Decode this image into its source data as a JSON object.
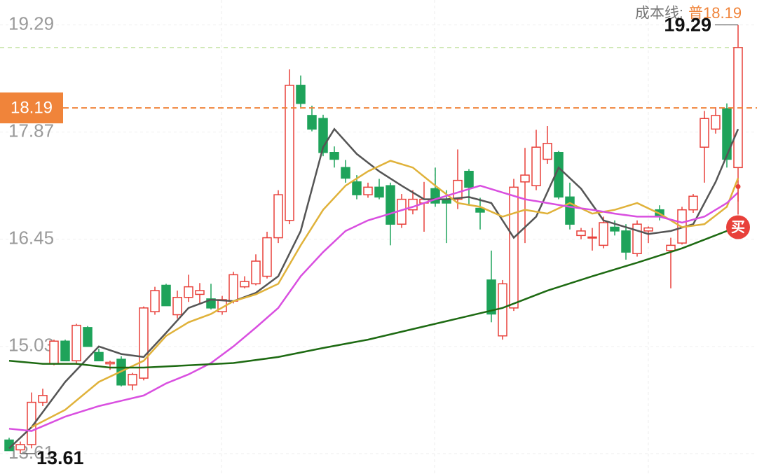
{
  "chart_data": {
    "type": "candlestick",
    "ylim": [
      13.34,
      19.62
    ],
    "yticks": [
      13.61,
      15.03,
      16.45,
      17.87,
      19.29
    ],
    "up_color": "#e8403a",
    "down_color": "#1ea35a",
    "candles": [
      [
        13.79,
        13.82,
        13.65,
        13.65
      ],
      [
        13.66,
        13.77,
        13.61,
        13.73
      ],
      [
        13.73,
        14.42,
        13.68,
        14.29
      ],
      [
        14.29,
        14.47,
        14.24,
        14.38
      ],
      [
        14.8,
        15.12,
        14.78,
        15.1
      ],
      [
        15.1,
        15.12,
        14.84,
        14.84
      ],
      [
        14.84,
        15.33,
        14.8,
        15.31
      ],
      [
        15.28,
        15.3,
        15.03,
        15.03
      ],
      [
        14.95,
        15.0,
        14.84,
        14.84
      ],
      [
        14.8,
        14.84,
        14.72,
        14.82
      ],
      [
        14.86,
        14.9,
        14.5,
        14.52
      ],
      [
        14.52,
        14.68,
        14.45,
        14.66
      ],
      [
        14.61,
        15.56,
        14.58,
        15.54
      ],
      [
        15.49,
        15.82,
        15.45,
        15.77
      ],
      [
        15.84,
        15.86,
        15.57,
        15.57
      ],
      [
        15.45,
        15.77,
        15.4,
        15.68
      ],
      [
        15.68,
        15.98,
        15.62,
        15.82
      ],
      [
        15.72,
        15.87,
        15.6,
        15.77
      ],
      [
        15.66,
        15.86,
        15.52,
        15.54
      ],
      [
        15.49,
        15.7,
        15.45,
        15.65
      ],
      [
        15.63,
        16.02,
        15.6,
        15.98
      ],
      [
        15.82,
        15.96,
        15.8,
        15.89
      ],
      [
        15.86,
        16.25,
        15.84,
        16.16
      ],
      [
        15.96,
        16.55,
        15.93,
        16.47
      ],
      [
        16.47,
        17.1,
        16.4,
        17.04
      ],
      [
        16.7,
        18.7,
        16.65,
        18.49
      ],
      [
        18.49,
        18.62,
        18.2,
        18.25
      ],
      [
        18.09,
        18.22,
        17.88,
        17.91
      ],
      [
        18.05,
        18.1,
        17.55,
        17.6
      ],
      [
        17.6,
        17.68,
        17.4,
        17.51
      ],
      [
        17.4,
        17.5,
        17.2,
        17.26
      ],
      [
        17.21,
        17.3,
        16.98,
        17.04
      ],
      [
        17.04,
        17.2,
        17.0,
        17.14
      ],
      [
        17.14,
        17.25,
        16.98,
        17.01
      ],
      [
        17.16,
        17.2,
        16.37,
        16.65
      ],
      [
        16.65,
        17.05,
        16.6,
        16.98
      ],
      [
        16.84,
        17.1,
        16.78,
        16.98
      ],
      [
        16.93,
        17.21,
        16.55,
        16.98
      ],
      [
        17.12,
        17.4,
        16.88,
        16.93
      ],
      [
        16.98,
        17.1,
        16.4,
        16.93
      ],
      [
        16.98,
        17.64,
        16.85,
        17.23
      ],
      [
        17.35,
        17.38,
        16.9,
        17.14
      ],
      [
        16.86,
        17.0,
        16.58,
        16.81
      ],
      [
        15.91,
        16.3,
        15.35,
        15.46
      ],
      [
        15.17,
        15.91,
        15.12,
        15.86
      ],
      [
        15.54,
        17.25,
        15.5,
        17.14
      ],
      [
        17.21,
        17.66,
        16.4,
        17.3
      ],
      [
        17.16,
        17.9,
        17.1,
        17.67
      ],
      [
        17.51,
        17.95,
        17.45,
        17.72
      ],
      [
        17.6,
        17.62,
        16.98,
        17.01
      ],
      [
        17.01,
        17.2,
        16.58,
        16.65
      ],
      [
        16.5,
        16.6,
        16.45,
        16.56
      ],
      [
        16.47,
        16.6,
        16.3,
        16.48
      ],
      [
        16.37,
        16.75,
        16.33,
        16.67
      ],
      [
        16.61,
        16.7,
        16.5,
        16.56
      ],
      [
        16.56,
        16.65,
        16.18,
        16.28
      ],
      [
        16.26,
        16.7,
        16.22,
        16.65
      ],
      [
        16.56,
        16.62,
        16.4,
        16.6
      ],
      [
        16.84,
        16.9,
        16.7,
        16.75
      ],
      [
        16.3,
        16.47,
        15.8,
        16.37
      ],
      [
        16.4,
        16.88,
        16.38,
        16.84
      ],
      [
        16.84,
        17.05,
        16.8,
        17.02
      ],
      [
        17.67,
        18.15,
        17.2,
        18.05
      ],
      [
        17.91,
        18.2,
        17.85,
        18.09
      ],
      [
        18.18,
        18.25,
        17.4,
        17.51
      ],
      [
        17.4,
        19.29,
        16.95,
        18.99
      ]
    ],
    "series": [
      {
        "color": "#555555",
        "x": [
          0,
          2,
          5,
          8,
          10,
          12,
          14,
          16,
          18,
          20,
          22,
          24,
          26,
          28,
          29,
          31,
          33,
          35,
          37,
          39,
          41,
          43,
          45,
          47,
          49,
          51,
          53,
          55,
          57,
          59,
          61,
          63,
          65
        ],
        "values": [
          13.68,
          13.96,
          14.56,
          15.03,
          14.93,
          14.89,
          15.21,
          15.54,
          15.65,
          15.63,
          15.74,
          15.96,
          16.56,
          17.67,
          17.91,
          17.58,
          17.35,
          17.16,
          16.98,
          16.98,
          17.01,
          16.93,
          16.47,
          16.75,
          17.4,
          17.12,
          16.7,
          16.61,
          16.52,
          16.56,
          16.65,
          17.21,
          17.91
        ]
      },
      {
        "color": "#e0b23a",
        "x": [
          2,
          5,
          8,
          10,
          12,
          14,
          16,
          18,
          20,
          22,
          24,
          26,
          28,
          30,
          32,
          34,
          36,
          38,
          40,
          42,
          44,
          46,
          48,
          50,
          52,
          54,
          56,
          58,
          60,
          62,
          64,
          65
        ],
        "values": [
          13.96,
          14.19,
          14.56,
          14.7,
          14.84,
          15.17,
          15.35,
          15.46,
          15.63,
          15.72,
          15.86,
          16.37,
          16.84,
          17.16,
          17.35,
          17.49,
          17.4,
          17.16,
          16.93,
          16.88,
          16.75,
          16.84,
          16.79,
          16.93,
          16.79,
          16.84,
          16.93,
          16.79,
          16.61,
          16.65,
          16.88,
          17.26
        ]
      },
      {
        "color": "#d94fe0",
        "x": [
          0,
          2,
          5,
          8,
          10,
          12,
          14,
          16,
          18,
          20,
          22,
          24,
          26,
          28,
          30,
          32,
          34,
          36,
          38,
          40,
          42,
          44,
          46,
          48,
          50,
          52,
          54,
          56,
          58,
          60,
          62,
          64,
          65
        ],
        "values": [
          13.94,
          13.91,
          14.1,
          14.24,
          14.31,
          14.38,
          14.54,
          14.66,
          14.81,
          15.03,
          15.28,
          15.54,
          15.96,
          16.28,
          16.56,
          16.7,
          16.79,
          16.88,
          16.98,
          17.07,
          17.16,
          17.07,
          16.98,
          16.93,
          16.88,
          16.84,
          16.79,
          16.75,
          16.75,
          16.67,
          16.75,
          16.93,
          17.07
        ]
      },
      {
        "color": "#1d6a12",
        "x": [
          0,
          3,
          6,
          9,
          12,
          16,
          20,
          24,
          28,
          32,
          36,
          40,
          44,
          48,
          52,
          56,
          60,
          64,
          65
        ],
        "values": [
          14.84,
          14.8,
          14.8,
          14.75,
          14.75,
          14.78,
          14.81,
          14.89,
          15.01,
          15.12,
          15.26,
          15.4,
          15.54,
          15.77,
          15.96,
          16.14,
          16.33,
          16.56,
          16.61
        ]
      }
    ],
    "cost_line": {
      "label": "成本线:",
      "prefix": "普",
      "value": 18.19,
      "color": "#f0843a"
    },
    "ref_level": 18.99,
    "buy_marker": "买"
  }
}
